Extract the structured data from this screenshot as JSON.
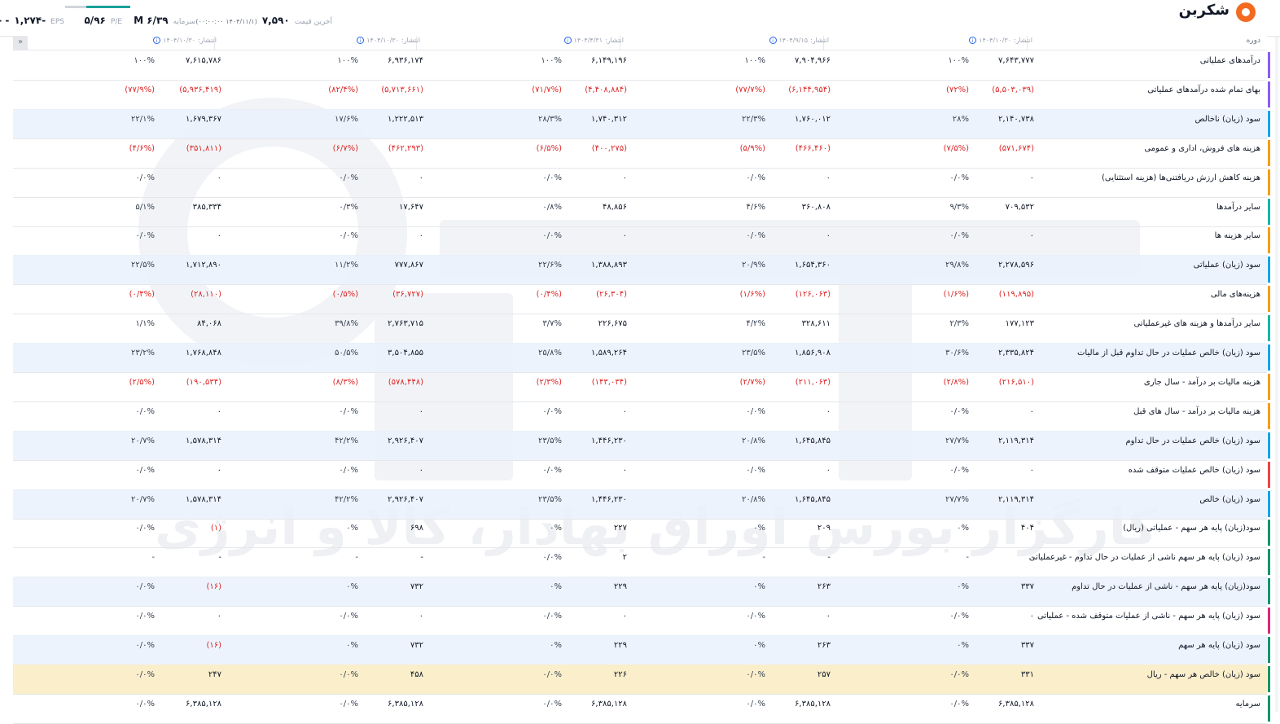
{
  "header": {
    "symbol": "شکربن",
    "last_price_label": "آخرین قیمت",
    "last_price": "۷,۵۹۰",
    "last_price_time": "(۱۴۰۴/۱۱/۱ ۰۰:۰۰:۰۰)",
    "market_cap_label": "سرمایه",
    "market_cap": "۶/۳۹ M",
    "pe_label": "P/E",
    "pe": "۵/۹۶",
    "eps_label": "EPS",
    "eps": "-۱,۲۷۴",
    "eps_change": "- -"
  },
  "columns": {
    "period_label": "دوره",
    "publish_prefix": "انتشار:",
    "dates": [
      "۱۴۰۴/۱۰/۳۰",
      "۱۴۰۴/۹/۱۵",
      "۱۴۰۴/۴/۳۱",
      "۱۴۰۴/۱۰/۳۰",
      "۱۴۰۴/۱۰/۳۰"
    ],
    "collapse_icon": "chevrons-icon"
  },
  "watermark": "کارگزار بورس اوراق بهادار، کالا و انرژی",
  "rows": [
    {
      "label": "درآمدهای عملیاتی",
      "bar": "#8b5cf6",
      "style": "",
      "cells": [
        [
          "۷,۶۴۳,۷۷۷",
          "۱۰۰%"
        ],
        [
          "۷,۹۰۴,۹۶۶",
          "۱۰۰%"
        ],
        [
          "۶,۱۴۹,۱۹۶",
          "۱۰۰%"
        ],
        [
          "۶,۹۳۶,۱۷۴",
          "۱۰۰%"
        ],
        [
          "۷,۶۱۵,۷۸۶",
          "۱۰۰%"
        ]
      ]
    },
    {
      "label": "بهای تمام شده درآمدهای عملیاتی",
      "bar": "#8b5cf6",
      "style": "",
      "cells": [
        [
          "(۵,۵۰۳,۰۳۹)",
          "(۷۲%)"
        ],
        [
          "(۶,۱۴۴,۹۵۴)",
          "(۷۷/۷%)"
        ],
        [
          "(۴,۴۰۸,۸۸۴)",
          "(۷۱/۷%)"
        ],
        [
          "(۵,۷۱۳,۶۶۱)",
          "(۸۲/۴%)"
        ],
        [
          "(۵,۹۳۶,۴۱۹)",
          "(۷۷/۹%)"
        ]
      ]
    },
    {
      "label": "سود (زیان) ناخالص",
      "bar": "#0ea5e9",
      "style": "hl",
      "cells": [
        [
          "۲,۱۴۰,۷۳۸",
          "۲۸%"
        ],
        [
          "۱,۷۶۰,۰۱۲",
          "۲۲/۳%"
        ],
        [
          "۱,۷۴۰,۳۱۲",
          "۲۸/۳%"
        ],
        [
          "۱,۲۲۲,۵۱۳",
          "۱۷/۶%"
        ],
        [
          "۱,۶۷۹,۳۶۷",
          "۲۲/۱%"
        ]
      ]
    },
    {
      "label": "هزینه های فروش، اداری و عمومی",
      "bar": "#f59e0b",
      "style": "",
      "cells": [
        [
          "(۵۷۱,۶۷۴)",
          "(۷/۵%)"
        ],
        [
          "(۴۶۶,۴۶۰)",
          "(۵/۹%)"
        ],
        [
          "(۴۰۰,۲۷۵)",
          "(۶/۵%)"
        ],
        [
          "(۴۶۲,۲۹۳)",
          "(۶/۷%)"
        ],
        [
          "(۳۵۱,۸۱۱)",
          "(۴/۶%)"
        ]
      ]
    },
    {
      "label": "هزینه کاهش ارزش دریافتنی‌ها (هزینه استثنایی)",
      "bar": "#f59e0b",
      "style": "",
      "cells": [
        [
          "۰",
          "۰/۰%"
        ],
        [
          "۰",
          "۰/۰%"
        ],
        [
          "۰",
          "۰/۰%"
        ],
        [
          "۰",
          "۰/۰%"
        ],
        [
          "۰",
          "۰/۰%"
        ]
      ]
    },
    {
      "label": "سایر درآمدها",
      "bar": "#14b8a6",
      "style": "",
      "cells": [
        [
          "۷۰۹,۵۳۲",
          "۹/۳%"
        ],
        [
          "۳۶۰,۸۰۸",
          "۴/۶%"
        ],
        [
          "۴۸,۸۵۶",
          "۰/۸%"
        ],
        [
          "۱۷,۶۴۷",
          "۰/۳%"
        ],
        [
          "۳۸۵,۳۳۴",
          "۵/۱%"
        ]
      ]
    },
    {
      "label": "سایر هزینه ها",
      "bar": "#f59e0b",
      "style": "",
      "cells": [
        [
          "۰",
          "۰/۰%"
        ],
        [
          "۰",
          "۰/۰%"
        ],
        [
          "۰",
          "۰/۰%"
        ],
        [
          "۰",
          "۰/۰%"
        ],
        [
          "۰",
          "۰/۰%"
        ]
      ]
    },
    {
      "label": "سود (زیان) عملیاتی",
      "bar": "#0ea5e9",
      "style": "hl",
      "cells": [
        [
          "۲,۲۷۸,۵۹۶",
          "۲۹/۸%"
        ],
        [
          "۱,۶۵۴,۳۶۰",
          "۲۰/۹%"
        ],
        [
          "۱,۳۸۸,۸۹۳",
          "۲۲/۶%"
        ],
        [
          "۷۷۷,۸۶۷",
          "۱۱/۲%"
        ],
        [
          "۱,۷۱۲,۸۹۰",
          "۲۲/۵%"
        ]
      ]
    },
    {
      "label": "هزینه‌های مالی",
      "bar": "#f59e0b",
      "style": "",
      "cells": [
        [
          "(۱۱۹,۸۹۵)",
          "(۱/۶%)"
        ],
        [
          "(۱۲۶,۰۶۳)",
          "(۱/۶%)"
        ],
        [
          "(۲۶,۳۰۴)",
          "(۰/۴%)"
        ],
        [
          "(۳۶,۷۲۷)",
          "(۰/۵%)"
        ],
        [
          "(۲۸,۱۱۰)",
          "(۰/۴%)"
        ]
      ]
    },
    {
      "label": "سایر درآمدها و هزینه های غیرعملیاتی",
      "bar": "#14b8a6",
      "style": "",
      "cells": [
        [
          "۱۷۷,۱۲۳",
          "۲/۳%"
        ],
        [
          "۳۲۸,۶۱۱",
          "۴/۲%"
        ],
        [
          "۲۲۶,۶۷۵",
          "۳/۷%"
        ],
        [
          "۲,۷۶۳,۷۱۵",
          "۳۹/۸%"
        ],
        [
          "۸۴,۰۶۸",
          "۱/۱%"
        ]
      ]
    },
    {
      "label": "سود (زیان) خالص عملیات در حال تداوم قبل از مالیات",
      "bar": "#0ea5e9",
      "style": "hl",
      "cells": [
        [
          "۲,۳۳۵,۸۲۴",
          "۳۰/۶%"
        ],
        [
          "۱,۸۵۶,۹۰۸",
          "۲۳/۵%"
        ],
        [
          "۱,۵۸۹,۲۶۴",
          "۲۵/۸%"
        ],
        [
          "۳,۵۰۴,۸۵۵",
          "۵۰/۵%"
        ],
        [
          "۱,۷۶۸,۸۴۸",
          "۲۳/۲%"
        ]
      ]
    },
    {
      "label": "هزینه مالیات بر درآمد - سال جاری",
      "bar": "#f59e0b",
      "style": "",
      "cells": [
        [
          "(۲۱۶,۵۱۰)",
          "(۲/۸%)"
        ],
        [
          "(۲۱۱,۰۶۳)",
          "(۲/۷%)"
        ],
        [
          "(۱۴۳,۰۳۴)",
          "(۲/۳%)"
        ],
        [
          "(۵۷۸,۴۴۸)",
          "(۸/۳%)"
        ],
        [
          "(۱۹۰,۵۳۴)",
          "(۲/۵%)"
        ]
      ]
    },
    {
      "label": "هزینه مالیات بر درآمد - سال های قبل",
      "bar": "#f59e0b",
      "style": "",
      "cells": [
        [
          "۰",
          "۰/۰%"
        ],
        [
          "۰",
          "۰/۰%"
        ],
        [
          "۰",
          "۰/۰%"
        ],
        [
          "۰",
          "۰/۰%"
        ],
        [
          "۰",
          "۰/۰%"
        ]
      ]
    },
    {
      "label": "سود (زیان) خالص عملیات در حال تداوم",
      "bar": "#0ea5e9",
      "style": "hl",
      "cells": [
        [
          "۲,۱۱۹,۳۱۴",
          "۲۷/۷%"
        ],
        [
          "۱,۶۴۵,۸۴۵",
          "۲۰/۸%"
        ],
        [
          "۱,۴۴۶,۲۳۰",
          "۲۳/۵%"
        ],
        [
          "۲,۹۲۶,۴۰۷",
          "۴۲/۲%"
        ],
        [
          "۱,۵۷۸,۳۱۴",
          "۲۰/۷%"
        ]
      ]
    },
    {
      "label": "سود (زیان) خالص عملیات متوقف شده",
      "bar": "#ef4444",
      "style": "",
      "cells": [
        [
          "۰",
          "۰/۰%"
        ],
        [
          "۰",
          "۰/۰%"
        ],
        [
          "۰",
          "۰/۰%"
        ],
        [
          "۰",
          "۰/۰%"
        ],
        [
          "۰",
          "۰/۰%"
        ]
      ]
    },
    {
      "label": "سود (زیان) خالص",
      "bar": "#0ea5e9",
      "style": "hl",
      "cells": [
        [
          "۲,۱۱۹,۳۱۴",
          "۲۷/۷%"
        ],
        [
          "۱,۶۴۵,۸۴۵",
          "۲۰/۸%"
        ],
        [
          "۱,۴۴۶,۲۳۰",
          "۲۳/۵%"
        ],
        [
          "۲,۹۲۶,۴۰۷",
          "۴۲/۲%"
        ],
        [
          "۱,۵۷۸,۳۱۴",
          "۲۰/۷%"
        ]
      ]
    },
    {
      "label": "سود(زیان) پایه هر سهم - عملیاتی (ریال)",
      "bar": "#059669",
      "style": "",
      "cells": [
        [
          "۴۰۴",
          "۰%"
        ],
        [
          "۲۰۹",
          "۰%"
        ],
        [
          "۲۲۷",
          "۰%"
        ],
        [
          "۶۹۸",
          "۰%"
        ],
        [
          "(۱)",
          "۰/۰%"
        ]
      ]
    },
    {
      "label": "سود (زیان) پایه هر سهم ناشی از عملیات در حال تداوم - غیرعملیاتی",
      "bar": "#059669",
      "style": "",
      "cells": [
        [
          "-",
          "-"
        ],
        [
          "-",
          "-"
        ],
        [
          "۲",
          "۰/۰%"
        ],
        [
          "-",
          "-"
        ],
        [
          "-",
          "-"
        ]
      ]
    },
    {
      "label": "سود(زیان) پایه هر سهم - ناشی از عملیات در حال تداوم",
      "bar": "#059669",
      "style": "hl",
      "cells": [
        [
          "۳۳۷",
          "۰%"
        ],
        [
          "۲۶۳",
          "۰%"
        ],
        [
          "۲۲۹",
          "۰%"
        ],
        [
          "۷۳۲",
          "۰%"
        ],
        [
          "(۱۶)",
          "۰/۰%"
        ]
      ]
    },
    {
      "label": "سود (زیان) پایه هر سهم - ناشی از عملیات متوقف شده - عملیاتی",
      "bar": "#db2777",
      "style": "",
      "cells": [
        [
          "۰",
          "۰/۰%"
        ],
        [
          "۰",
          "۰/۰%"
        ],
        [
          "۰",
          "۰/۰%"
        ],
        [
          "۰",
          "۰/۰%"
        ],
        [
          "۰",
          "۰/۰%"
        ]
      ]
    },
    {
      "label": "سود (زیان) پایه هر سهم",
      "bar": "#059669",
      "style": "hl",
      "cells": [
        [
          "۳۳۷",
          "۰%"
        ],
        [
          "۲۶۳",
          "۰%"
        ],
        [
          "۲۲۹",
          "۰%"
        ],
        [
          "۷۳۲",
          "۰%"
        ],
        [
          "(۱۶)",
          "۰/۰%"
        ]
      ]
    },
    {
      "label": "سود (زیان) خالص هر سهم - ریال",
      "bar": "#059669",
      "style": "gold",
      "cells": [
        [
          "۳۳۱",
          "۰/۰%"
        ],
        [
          "۲۵۷",
          "۰/۰%"
        ],
        [
          "۲۲۶",
          "۰/۰%"
        ],
        [
          "۴۵۸",
          "۰/۰%"
        ],
        [
          "۲۴۷",
          "۰/۰%"
        ]
      ]
    },
    {
      "label": "سرمایه",
      "bar": "#059669",
      "style": "",
      "cells": [
        [
          "۶,۳۸۵,۱۲۸",
          "۰/۰%"
        ],
        [
          "۶,۳۸۵,۱۲۸",
          "۰/۰%"
        ],
        [
          "۶,۳۸۵,۱۲۸",
          "۰/۰%"
        ],
        [
          "۶,۳۸۵,۱۲۸",
          "۰/۰%"
        ],
        [
          "۶,۳۸۵,۱۲۸",
          "۰/۰%"
        ]
      ]
    }
  ]
}
